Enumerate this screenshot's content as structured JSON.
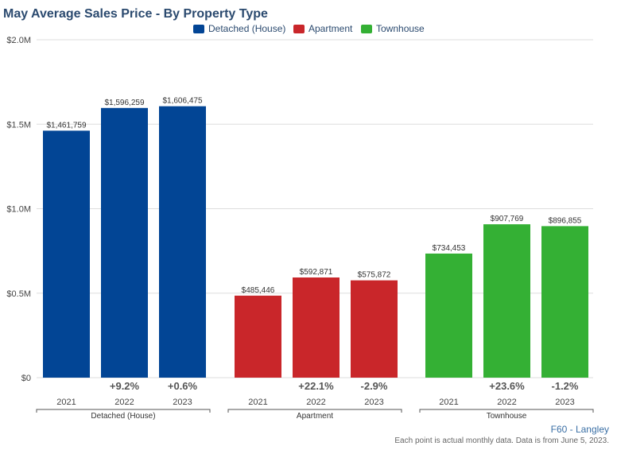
{
  "chart_data": {
    "type": "bar",
    "title": "May Average Sales Price - By Property Type",
    "groups": [
      "Detached (House)",
      "Apartment",
      "Townhouse"
    ],
    "years": [
      "2021",
      "2022",
      "2023"
    ],
    "series": [
      {
        "name": "Detached (House)",
        "color": "#024595",
        "values": [
          1461759,
          1596259,
          1606475
        ],
        "labels": [
          "$1,461,759",
          "$1,596,259",
          "$1,606,475"
        ],
        "changes": [
          "",
          "+9.2%",
          "+0.6%"
        ]
      },
      {
        "name": "Apartment",
        "color": "#c9262a",
        "values": [
          485446,
          592871,
          575872
        ],
        "labels": [
          "$485,446",
          "$592,871",
          "$575,872"
        ],
        "changes": [
          "",
          "+22.1%",
          "-2.9%"
        ]
      },
      {
        "name": "Townhouse",
        "color": "#34b034",
        "values": [
          734453,
          907769,
          896855
        ],
        "labels": [
          "$734,453",
          "$907,769",
          "$896,855"
        ],
        "changes": [
          "",
          "+23.6%",
          "-1.2%"
        ]
      }
    ],
    "ylim": [
      0,
      2000000
    ],
    "yticks": [
      {
        "value": 0,
        "label": "$0"
      },
      {
        "value": 500000,
        "label": "$0.5M"
      },
      {
        "value": 1000000,
        "label": "$1.0M"
      },
      {
        "value": 1500000,
        "label": "$1.5M"
      },
      {
        "value": 2000000,
        "label": "$2.0M"
      }
    ],
    "grid": true,
    "legend_position": "top-center"
  },
  "footer": {
    "source": "F60 - Langley",
    "note": "Each point is actual monthly data. Data is from June 5, 2023."
  },
  "colors": {
    "title": "#2b4a6f",
    "grid": "#dddddd",
    "axis_text": "#444444",
    "change_text": "#555555"
  }
}
